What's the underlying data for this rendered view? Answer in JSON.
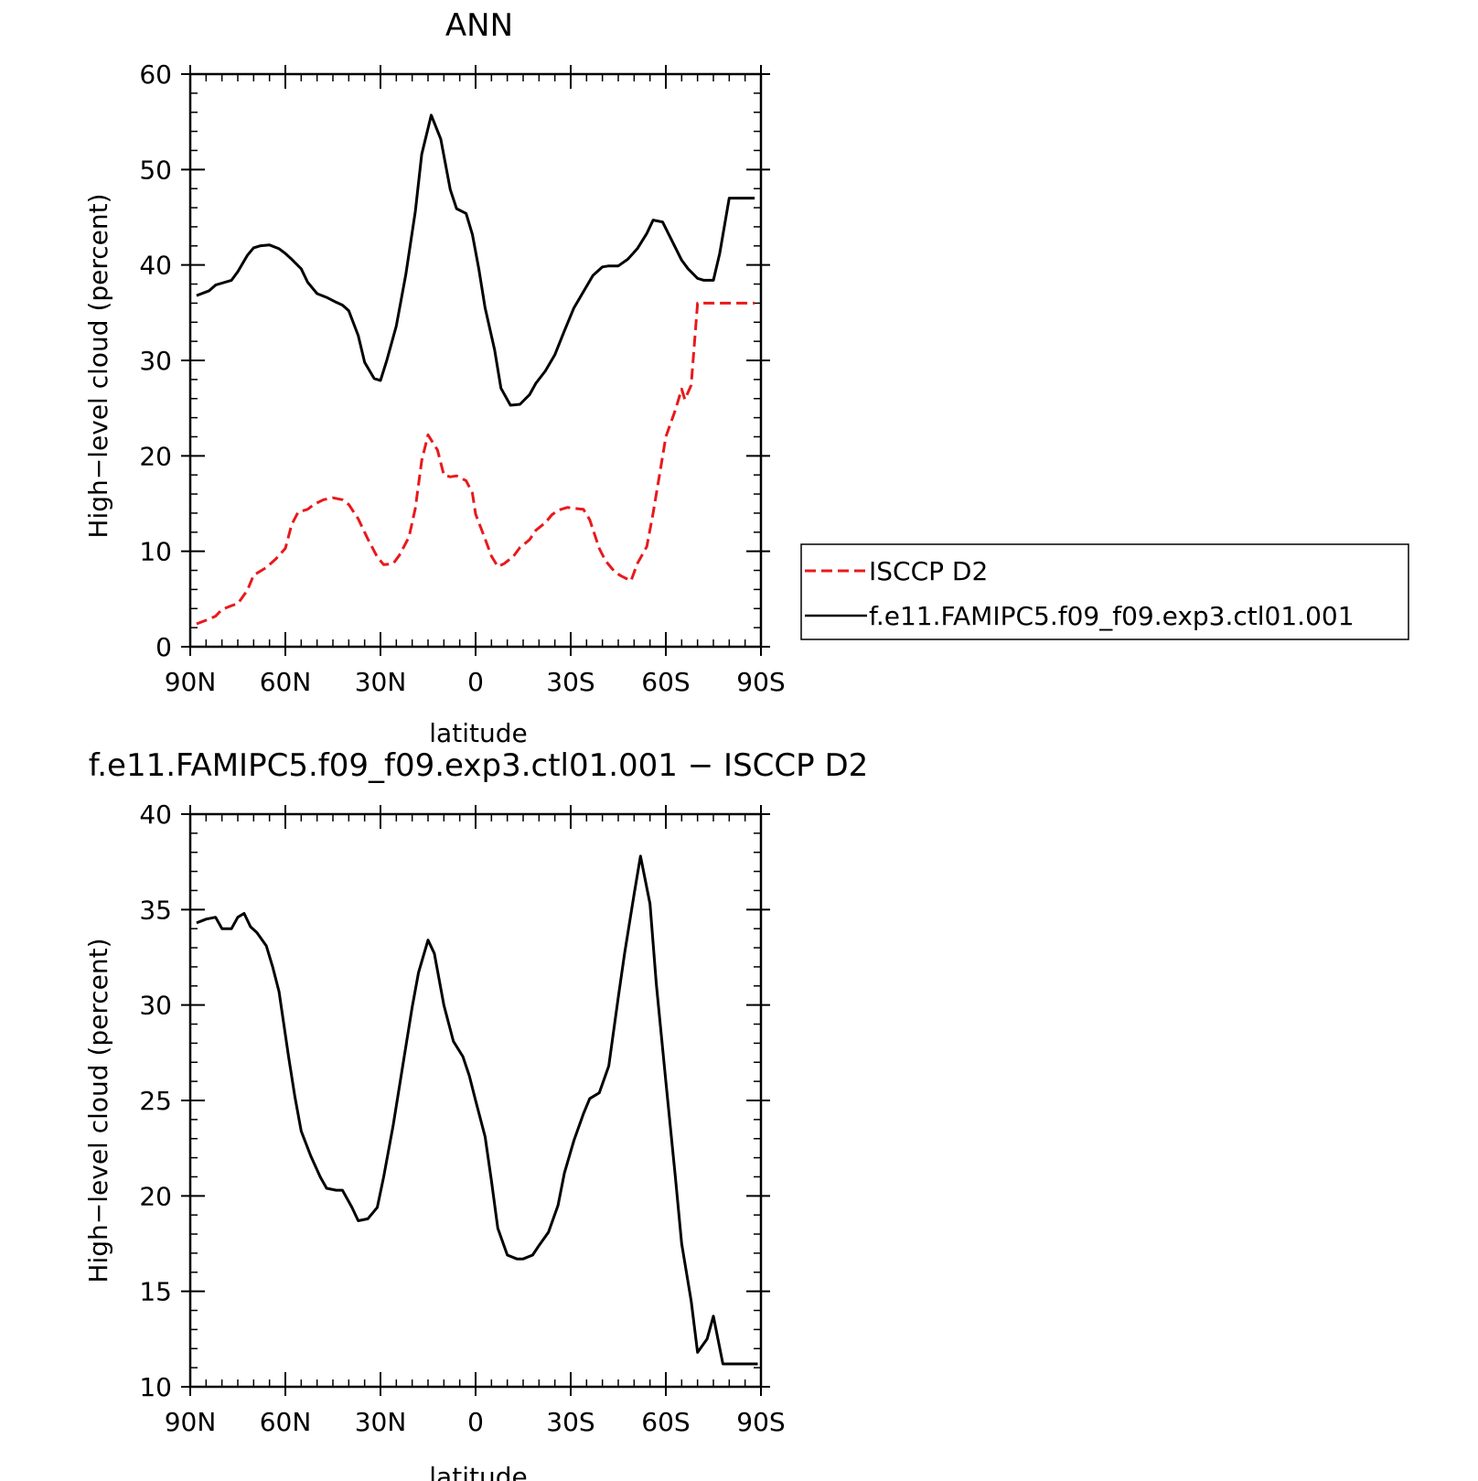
{
  "chart_data": [
    {
      "type": "line",
      "title": "ANN",
      "xlabel": "latitude",
      "ylabel": "High−level cloud (percent)",
      "xlim": [
        90,
        -90
      ],
      "ylim": [
        0,
        60
      ],
      "xticks": [
        {
          "value": 90,
          "label": "90N"
        },
        {
          "value": 60,
          "label": "60N"
        },
        {
          "value": 30,
          "label": "30N"
        },
        {
          "value": 0,
          "label": "0"
        },
        {
          "value": -30,
          "label": "30S"
        },
        {
          "value": -60,
          "label": "60S"
        },
        {
          "value": -90,
          "label": "90S"
        }
      ],
      "yticks": [
        {
          "value": 0,
          "label": "0"
        },
        {
          "value": 10,
          "label": "10"
        },
        {
          "value": 20,
          "label": "20"
        },
        {
          "value": 30,
          "label": "30"
        },
        {
          "value": 40,
          "label": "40"
        },
        {
          "value": 50,
          "label": "50"
        },
        {
          "value": 60,
          "label": "60"
        }
      ],
      "legend": "right",
      "series": [
        {
          "name": "ISCCP D2",
          "color": "#e8191c",
          "style": "dashed",
          "x": [
            88,
            84,
            82,
            80,
            77,
            75,
            72,
            70,
            66,
            63,
            60,
            58,
            56,
            53,
            51,
            48,
            45,
            42,
            40,
            37,
            34,
            31,
            29,
            26,
            24,
            21,
            19,
            17,
            15,
            12,
            10,
            8,
            6,
            3,
            1,
            0,
            -3,
            -5,
            -7,
            -9,
            -12,
            -14,
            -17,
            -19,
            -22,
            -24,
            -26,
            -29,
            -31,
            -34,
            -36,
            -39,
            -41,
            -44,
            -46,
            -49,
            -51,
            -54,
            -56,
            -58,
            -60,
            -63,
            -65,
            -66,
            -68,
            -70,
            -72,
            -74,
            -76,
            -78,
            -80,
            -82,
            -84,
            -86,
            -88
          ],
          "y": [
            2.4,
            2.9,
            3.2,
            3.9,
            4.3,
            4.5,
            5.9,
            7.5,
            8.3,
            9.2,
            10.3,
            12.8,
            14.1,
            14.4,
            14.9,
            15.4,
            15.6,
            15.4,
            14.9,
            13.4,
            11.3,
            9.4,
            8.6,
            8.7,
            9.6,
            11.5,
            14.5,
            19.5,
            22.2,
            20.6,
            18.0,
            17.8,
            17.9,
            17.4,
            16.1,
            13.9,
            11.3,
            9.5,
            8.4,
            8.7,
            9.5,
            10.4,
            11.2,
            12.2,
            13.0,
            13.8,
            14.3,
            14.6,
            14.5,
            14.4,
            13.3,
            10.3,
            9.0,
            7.8,
            7.4,
            6.9,
            8.7,
            10.5,
            14.0,
            18.0,
            22.0,
            24.8,
            27.0,
            25.9,
            27.4,
            36.0,
            36.0,
            36.0,
            36.0,
            36.0,
            36.0,
            36.0,
            36.0,
            36.0,
            36.0
          ]
        },
        {
          "name": "f.e11.FAMIPC5.f09_f09.exp3.ctl01.001",
          "color": "#000000",
          "style": "solid",
          "x": [
            88,
            84,
            82,
            80,
            77,
            75,
            72,
            70,
            68,
            65,
            62,
            60,
            58,
            55,
            53,
            50,
            47,
            44,
            42,
            40,
            37,
            35,
            32,
            30,
            28,
            25,
            22,
            19,
            17,
            14,
            11,
            8,
            6,
            3,
            1,
            -1,
            -3,
            -6,
            -8,
            -11,
            -14,
            -17,
            -19,
            -22,
            -25,
            -28,
            -31,
            -34,
            -37,
            -40,
            -42,
            -45,
            -48,
            -51,
            -54,
            -56,
            -59,
            -62,
            -65,
            -67,
            -70,
            -72,
            -75,
            -77,
            -80,
            -82,
            -84,
            -86,
            -88
          ],
          "y": [
            36.8,
            37.3,
            37.9,
            38.1,
            38.4,
            39.3,
            41.0,
            41.8,
            42.0,
            42.1,
            41.7,
            41.2,
            40.6,
            39.6,
            38.2,
            37.0,
            36.6,
            36.1,
            35.8,
            35.2,
            32.6,
            29.8,
            28.1,
            27.9,
            30.0,
            33.6,
            39.0,
            45.6,
            51.6,
            55.7,
            53.2,
            47.9,
            45.9,
            45.4,
            43.2,
            39.6,
            35.5,
            31.1,
            27.1,
            25.3,
            25.4,
            26.4,
            27.6,
            28.9,
            30.6,
            33.1,
            35.5,
            37.2,
            38.9,
            39.8,
            39.9,
            39.9,
            40.6,
            41.7,
            43.3,
            44.7,
            44.5,
            42.5,
            40.5,
            39.6,
            38.6,
            38.4,
            38.4,
            41.2,
            47.0,
            47.0,
            47.0,
            47.0,
            47.0
          ]
        }
      ]
    },
    {
      "type": "line",
      "title": "f.e11.FAMIPC5.f09_f09.exp3.ctl01.001 − ISCCP D2",
      "xlabel": "latitude",
      "ylabel": "High−level cloud (percent)",
      "xlim": [
        90,
        -90
      ],
      "ylim": [
        10,
        40
      ],
      "xticks": [
        {
          "value": 90,
          "label": "90N"
        },
        {
          "value": 60,
          "label": "60N"
        },
        {
          "value": 30,
          "label": "30N"
        },
        {
          "value": 0,
          "label": "0"
        },
        {
          "value": -30,
          "label": "30S"
        },
        {
          "value": -60,
          "label": "60S"
        },
        {
          "value": -90,
          "label": "90S"
        }
      ],
      "yticks": [
        {
          "value": 10,
          "label": "10"
        },
        {
          "value": 15,
          "label": "15"
        },
        {
          "value": 20,
          "label": "20"
        },
        {
          "value": 25,
          "label": "25"
        },
        {
          "value": 30,
          "label": "30"
        },
        {
          "value": 35,
          "label": "35"
        },
        {
          "value": 40,
          "label": "40"
        }
      ],
      "series": [
        {
          "color": "#000000",
          "style": "solid",
          "x": [
            88,
            85,
            82,
            80,
            77,
            75,
            73,
            71,
            69,
            66,
            64,
            62,
            59,
            57,
            55,
            52,
            49,
            47,
            44,
            42,
            39,
            37,
            34,
            31,
            29,
            26,
            23,
            20,
            18,
            15,
            13,
            10,
            7,
            4,
            2,
            0,
            -3,
            -5,
            -7,
            -10,
            -13,
            -15,
            -18,
            -20,
            -23,
            -26,
            -28,
            -31,
            -34,
            -36,
            -39,
            -42,
            -45,
            -47,
            -50,
            -52,
            -55,
            -57,
            -60,
            -63,
            -65,
            -68,
            -70,
            -73,
            -75,
            -78,
            -80,
            -83,
            -85,
            -87,
            -89
          ],
          "y": [
            34.3,
            34.5,
            34.6,
            34.0,
            34.0,
            34.6,
            34.8,
            34.1,
            33.8,
            33.1,
            32.0,
            30.7,
            27.3,
            25.2,
            23.4,
            22.1,
            21.0,
            20.4,
            20.3,
            20.3,
            19.4,
            18.7,
            18.8,
            19.4,
            21.0,
            23.7,
            26.8,
            29.9,
            31.7,
            33.4,
            32.7,
            30.0,
            28.1,
            27.3,
            26.3,
            25.0,
            23.1,
            20.8,
            18.3,
            16.9,
            16.7,
            16.7,
            16.9,
            17.4,
            18.1,
            19.5,
            21.2,
            22.9,
            24.3,
            25.1,
            25.4,
            26.8,
            30.4,
            32.7,
            35.8,
            37.8,
            35.3,
            31.1,
            26.0,
            21.0,
            17.5,
            14.5,
            11.8,
            12.5,
            13.7,
            11.2,
            11.2,
            11.2,
            11.2,
            11.2,
            11.2
          ]
        }
      ]
    }
  ]
}
